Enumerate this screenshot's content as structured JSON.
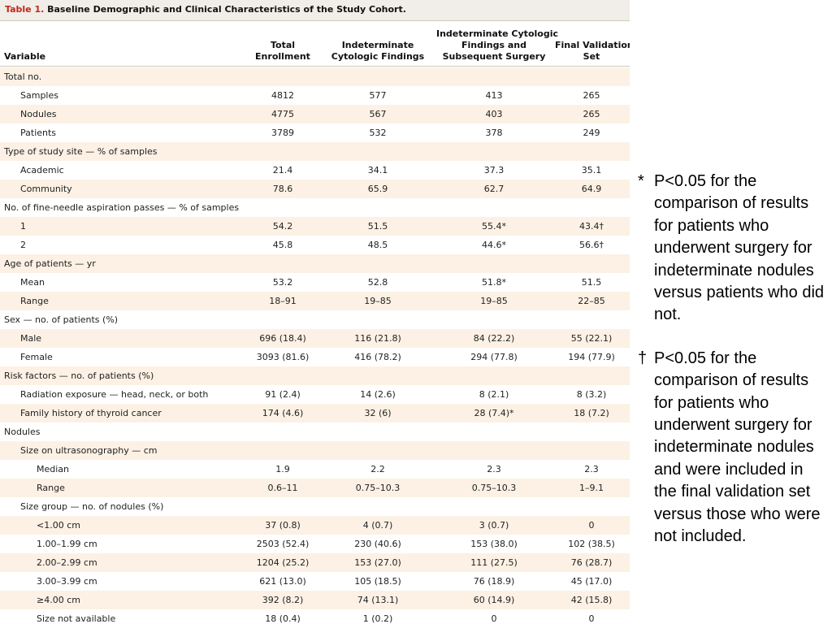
{
  "table": {
    "number": "Table 1.",
    "title": "Baseline Demographic and Clinical Characteristics of the Study Cohort.",
    "headers": {
      "variable": "Variable",
      "total": [
        "Total",
        "Enrollment"
      ],
      "indet": [
        "Indeterminate",
        "Cytologic Findings"
      ],
      "surgery": [
        "Indeterminate Cytologic",
        "Findings and",
        "Subsequent Surgery"
      ],
      "final": [
        "Final Validation",
        "Set"
      ]
    },
    "rows": [
      {
        "label": "Total no.",
        "indent": 0,
        "values": [
          "",
          "",
          "",
          ""
        ]
      },
      {
        "label": "Samples",
        "indent": 1,
        "values": [
          "4812",
          "577",
          "413",
          "265"
        ]
      },
      {
        "label": "Nodules",
        "indent": 1,
        "values": [
          "4775",
          "567",
          "403",
          "265"
        ]
      },
      {
        "label": "Patients",
        "indent": 1,
        "values": [
          "3789",
          "532",
          "378",
          "249"
        ]
      },
      {
        "label": "Type of study site — % of samples",
        "indent": 0,
        "values": [
          "",
          "",
          "",
          ""
        ]
      },
      {
        "label": "Academic",
        "indent": 1,
        "values": [
          "21.4",
          "34.1",
          "37.3",
          "35.1"
        ]
      },
      {
        "label": "Community",
        "indent": 1,
        "values": [
          "78.6",
          "65.9",
          "62.7",
          "64.9"
        ]
      },
      {
        "label": "No. of fine-needle aspiration passes — % of samples",
        "indent": 0,
        "values": [
          "",
          "",
          "",
          ""
        ]
      },
      {
        "label": "1",
        "indent": 1,
        "values": [
          "54.2",
          "51.5",
          "55.4*",
          "43.4†"
        ]
      },
      {
        "label": "2",
        "indent": 1,
        "values": [
          "45.8",
          "48.5",
          "44.6*",
          "56.6†"
        ]
      },
      {
        "label": "Age of patients — yr",
        "indent": 0,
        "values": [
          "",
          "",
          "",
          ""
        ]
      },
      {
        "label": "Mean",
        "indent": 1,
        "values": [
          "53.2",
          "52.8",
          "51.8*",
          "51.5"
        ]
      },
      {
        "label": "Range",
        "indent": 1,
        "values": [
          "18–91",
          "19–85",
          "19–85",
          "22–85"
        ]
      },
      {
        "label": "Sex — no. of patients (%)",
        "indent": 0,
        "values": [
          "",
          "",
          "",
          ""
        ]
      },
      {
        "label": "Male",
        "indent": 1,
        "values": [
          "696 (18.4)",
          "116 (21.8)",
          "84 (22.2)",
          "55 (22.1)"
        ]
      },
      {
        "label": "Female",
        "indent": 1,
        "values": [
          "3093 (81.6)",
          "416 (78.2)",
          "294 (77.8)",
          "194 (77.9)"
        ]
      },
      {
        "label": "Risk factors — no. of patients (%)",
        "indent": 0,
        "values": [
          "",
          "",
          "",
          ""
        ]
      },
      {
        "label": "Radiation exposure — head, neck, or both",
        "indent": 1,
        "values": [
          "91 (2.4)",
          "14 (2.6)",
          "8 (2.1)",
          "8 (3.2)"
        ]
      },
      {
        "label": "Family history of thyroid cancer",
        "indent": 1,
        "values": [
          "174 (4.6)",
          "32 (6)",
          "28 (7.4)*",
          "18 (7.2)"
        ]
      },
      {
        "label": "Nodules",
        "indent": 0,
        "values": [
          "",
          "",
          "",
          ""
        ]
      },
      {
        "label": "Size on ultrasonography — cm",
        "indent": 1,
        "values": [
          "",
          "",
          "",
          ""
        ]
      },
      {
        "label": "Median",
        "indent": 2,
        "values": [
          "1.9",
          "2.2",
          "2.3",
          "2.3"
        ]
      },
      {
        "label": "Range",
        "indent": 2,
        "values": [
          "0.6–11",
          "0.75–10.3",
          "0.75–10.3",
          "1–9.1"
        ]
      },
      {
        "label": "Size group — no. of nodules (%)",
        "indent": 1,
        "values": [
          "",
          "",
          "",
          ""
        ]
      },
      {
        "label": "<1.00 cm",
        "indent": 2,
        "values": [
          "37 (0.8)",
          "4 (0.7)",
          "3 (0.7)",
          "0"
        ]
      },
      {
        "label": "1.00–1.99 cm",
        "indent": 2,
        "values": [
          "2503 (52.4)",
          "230 (40.6)",
          "153 (38.0)",
          "102 (38.5)"
        ]
      },
      {
        "label": "2.00–2.99 cm",
        "indent": 2,
        "values": [
          "1204 (25.2)",
          "153 (27.0)",
          "111 (27.5)",
          "76 (28.7)"
        ]
      },
      {
        "label": "3.00–3.99 cm",
        "indent": 2,
        "values": [
          "621 (13.0)",
          "105 (18.5)",
          "76 (18.9)",
          "45 (17.0)"
        ]
      },
      {
        "label": "≥4.00 cm",
        "indent": 2,
        "values": [
          "392 (8.2)",
          "74 (13.1)",
          "60 (14.9)",
          "42 (15.8)"
        ]
      },
      {
        "label": "Size not available",
        "indent": 2,
        "values": [
          "18 (0.4)",
          "1 (0.2)",
          "0",
          "0"
        ]
      }
    ]
  },
  "footnotes": [
    {
      "mark": "*",
      "text": "P<0.05 for the comparison of results for patients who underwent surgery for indeterminate nodules versus patients who did not."
    },
    {
      "mark": "†",
      "text": "P<0.05 for the comparison of results for patients who underwent surgery for indeterminate nodules and were included in the final validation set versus those who were not included."
    }
  ],
  "colors": {
    "title_accent": "#c0281c",
    "row_shade": "#fcf1e4",
    "header_bg": "#f1ede8"
  }
}
